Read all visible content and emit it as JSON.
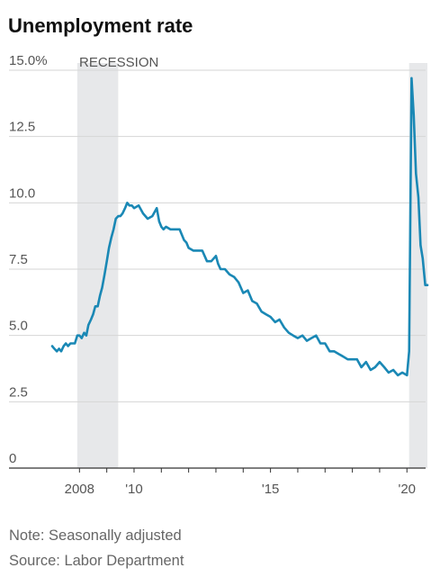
{
  "chart_data": {
    "type": "line",
    "title": "Unemployment rate",
    "recession_label": "RECESSION",
    "ylim": [
      0,
      15
    ],
    "xlim": [
      2007.0,
      2020.75
    ],
    "y_ticks": [
      {
        "value": 15,
        "label": "15.0%"
      },
      {
        "value": 12.5,
        "label": "12.5"
      },
      {
        "value": 10,
        "label": "10.0"
      },
      {
        "value": 7.5,
        "label": "7.5"
      },
      {
        "value": 5,
        "label": "5.0"
      },
      {
        "value": 2.5,
        "label": "2.5"
      },
      {
        "value": 0,
        "label": "0"
      }
    ],
    "x_ticks": [
      {
        "value": 2008,
        "label": "2008"
      },
      {
        "value": 2010,
        "label": "'10"
      },
      {
        "value": 2015,
        "label": "'15"
      },
      {
        "value": 2020,
        "label": "'20"
      }
    ],
    "recessions": [
      {
        "start": 2007.92,
        "end": 2009.42
      },
      {
        "start": 2020.08,
        "end": 2020.75
      }
    ],
    "grid": true,
    "line_color": "#1a88b5",
    "series": [
      {
        "x": [
          2007.0,
          2007.08,
          2007.17,
          2007.25,
          2007.33,
          2007.42,
          2007.5,
          2007.58,
          2007.67,
          2007.75,
          2007.83,
          2007.92,
          2008.0,
          2008.08,
          2008.17,
          2008.25,
          2008.33,
          2008.42,
          2008.5,
          2008.58,
          2008.67,
          2008.75,
          2008.83,
          2008.92,
          2009.0,
          2009.08,
          2009.17,
          2009.25,
          2009.33,
          2009.42,
          2009.5,
          2009.58,
          2009.67,
          2009.75,
          2009.83,
          2009.92,
          2010.0,
          2010.17,
          2010.33,
          2010.5,
          2010.67,
          2010.83,
          2010.92,
          2011.0,
          2011.08,
          2011.17,
          2011.33,
          2011.5,
          2011.67,
          2011.83,
          2011.92,
          2012.0,
          2012.17,
          2012.33,
          2012.5,
          2012.67,
          2012.83,
          2013.0,
          2013.08,
          2013.17,
          2013.33,
          2013.5,
          2013.67,
          2013.83,
          2014.0,
          2014.17,
          2014.33,
          2014.5,
          2014.67,
          2014.83,
          2015.0,
          2015.17,
          2015.33,
          2015.5,
          2015.67,
          2015.83,
          2016.0,
          2016.17,
          2016.33,
          2016.5,
          2016.67,
          2016.83,
          2017.0,
          2017.17,
          2017.33,
          2017.5,
          2017.67,
          2017.83,
          2018.0,
          2018.17,
          2018.33,
          2018.5,
          2018.67,
          2018.83,
          2019.0,
          2019.17,
          2019.33,
          2019.5,
          2019.67,
          2019.83,
          2020.0,
          2020.08,
          2020.17,
          2020.25,
          2020.33,
          2020.42,
          2020.5,
          2020.58,
          2020.67,
          2020.75
        ],
        "y": [
          4.6,
          4.5,
          4.4,
          4.5,
          4.4,
          4.6,
          4.7,
          4.6,
          4.7,
          4.7,
          4.7,
          5.0,
          5.0,
          4.9,
          5.1,
          5.0,
          5.4,
          5.6,
          5.8,
          6.1,
          6.1,
          6.5,
          6.8,
          7.3,
          7.8,
          8.3,
          8.7,
          9.0,
          9.4,
          9.5,
          9.5,
          9.6,
          9.8,
          10.0,
          9.9,
          9.9,
          9.8,
          9.9,
          9.6,
          9.4,
          9.5,
          9.8,
          9.3,
          9.1,
          9.0,
          9.1,
          9.0,
          9.0,
          9.0,
          8.6,
          8.5,
          8.3,
          8.2,
          8.2,
          8.2,
          7.8,
          7.8,
          8.0,
          7.7,
          7.5,
          7.5,
          7.3,
          7.2,
          7.0,
          6.6,
          6.7,
          6.3,
          6.2,
          5.9,
          5.8,
          5.7,
          5.5,
          5.6,
          5.3,
          5.1,
          5.0,
          4.9,
          5.0,
          4.8,
          4.9,
          5.0,
          4.7,
          4.7,
          4.4,
          4.4,
          4.3,
          4.2,
          4.1,
          4.1,
          4.1,
          3.8,
          4.0,
          3.7,
          3.8,
          4.0,
          3.8,
          3.6,
          3.7,
          3.5,
          3.6,
          3.5,
          4.4,
          14.7,
          13.3,
          11.1,
          10.2,
          8.4,
          7.9,
          6.9,
          6.9
        ]
      }
    ]
  },
  "footer": {
    "note": "Note: Seasonally adjusted",
    "source": "Source: Labor Department"
  }
}
